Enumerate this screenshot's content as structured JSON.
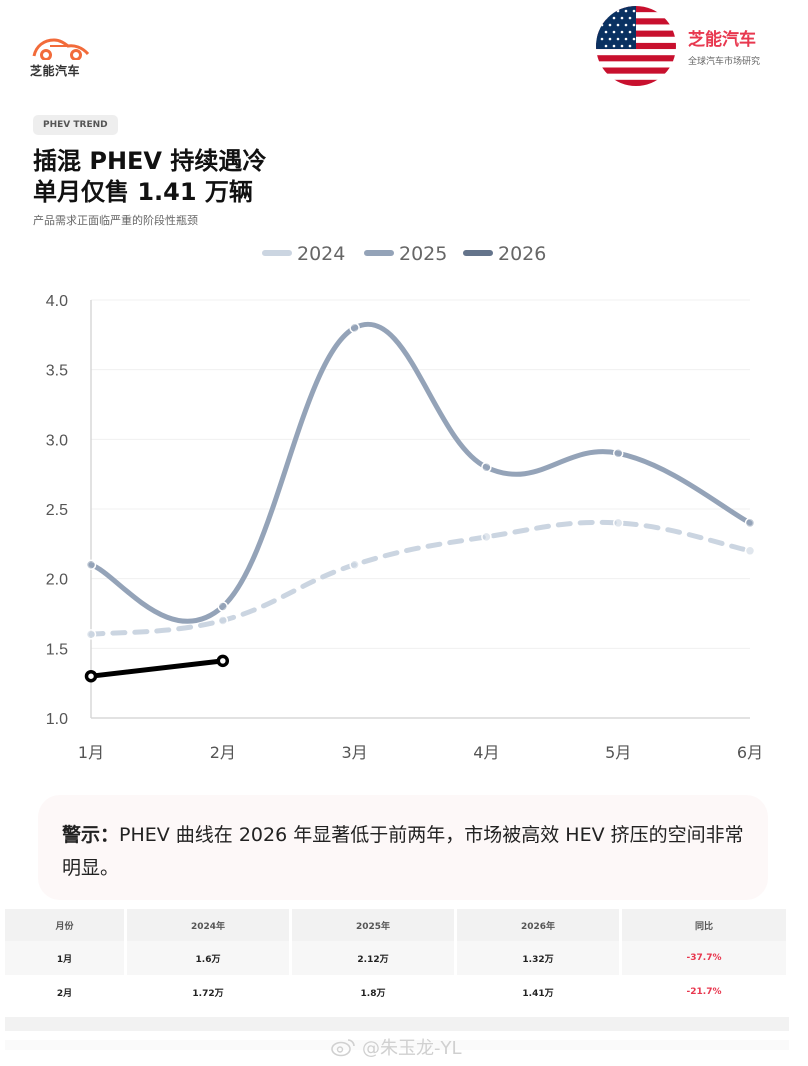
{
  "logo": {
    "text": "芝能汽车"
  },
  "brand": {
    "name": "芝能汽车",
    "sub": "全球汽车市场研究"
  },
  "tag": "PHEV TREND",
  "title_line1": "插混 PHEV 持续遇冷",
  "title_line2": "单月仅售 1.41 万辆",
  "subtitle": "产品需求正面临严重的阶段性瓶颈",
  "colors": {
    "s2024": "#cbd5e1",
    "s2025": "#94a3b8",
    "s2026": "#000000",
    "accent": "#e8384f"
  },
  "chart_data": {
    "type": "line",
    "categories": [
      "1月",
      "2月",
      "3月",
      "4月",
      "5月",
      "6月"
    ],
    "series": [
      {
        "name": "2024",
        "values": [
          1.6,
          1.7,
          2.1,
          2.3,
          2.4,
          2.2
        ],
        "style": "dashed"
      },
      {
        "name": "2025",
        "values": [
          2.1,
          1.8,
          3.8,
          2.8,
          2.9,
          2.4
        ],
        "style": "solid"
      },
      {
        "name": "2026",
        "values": [
          1.3,
          1.41,
          null,
          null,
          null,
          null
        ],
        "style": "solid"
      }
    ],
    "yticks": [
      "1.0",
      "1.5",
      "2.0",
      "2.5",
      "3.0",
      "3.5",
      "4.0"
    ],
    "ylim": [
      1.0,
      4.0
    ],
    "legend_position": "top-center",
    "grid": true
  },
  "warning": {
    "label": "警示：",
    "text": "PHEV 曲线在 2026 年显著低于前两年，市场被高效 HEV 挤压的空间非常明显。"
  },
  "table": {
    "headers": [
      "月份",
      "2024年",
      "2025年",
      "2026年",
      "同比"
    ],
    "rows": [
      [
        "1月",
        "1.6万",
        "2.12万",
        "1.32万",
        "-37.7%"
      ],
      [
        "2月",
        "1.72万",
        "1.8万",
        "1.41万",
        "-21.7%"
      ]
    ]
  },
  "watermark": "@朱玉龙-YL"
}
